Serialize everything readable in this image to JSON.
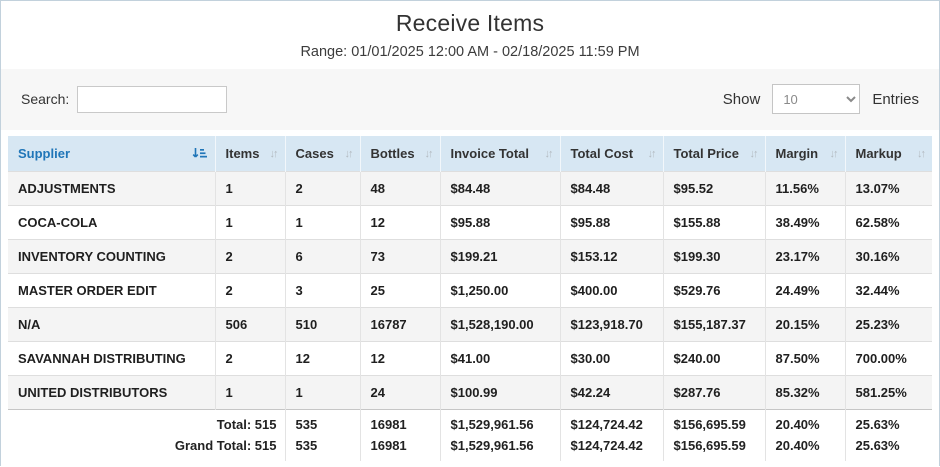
{
  "page": {
    "title": "Receive Items",
    "subtitle": "Range: 01/01/2025 12:00 AM - 02/18/2025 11:59 PM"
  },
  "toolbar": {
    "search_label": "Search:",
    "search_value": "",
    "show_label": "Show",
    "page_size": "10",
    "entries_label": "Entries"
  },
  "colors": {
    "header_bg": "#d7e7f3",
    "sorted_column_text": "#2076b8",
    "row_stripe": "#f4f4f4",
    "outer_border": "#c2d1dc"
  },
  "table": {
    "columns": [
      {
        "label": "Supplier",
        "sorted": true
      },
      {
        "label": "Items",
        "sorted": false
      },
      {
        "label": "Cases",
        "sorted": false
      },
      {
        "label": "Bottles",
        "sorted": false
      },
      {
        "label": "Invoice Total",
        "sorted": false
      },
      {
        "label": "Total Cost",
        "sorted": false
      },
      {
        "label": "Total Price",
        "sorted": false
      },
      {
        "label": "Margin",
        "sorted": false
      },
      {
        "label": "Markup",
        "sorted": false
      }
    ],
    "rows": [
      [
        "ADJUSTMENTS",
        "1",
        "2",
        "48",
        "$84.48",
        "$84.48",
        "$95.52",
        "11.56%",
        "13.07%"
      ],
      [
        "COCA-COLA",
        "1",
        "1",
        "12",
        "$95.88",
        "$95.88",
        "$155.88",
        "38.49%",
        "62.58%"
      ],
      [
        "INVENTORY COUNTING",
        "2",
        "6",
        "73",
        "$199.21",
        "$153.12",
        "$199.30",
        "23.17%",
        "30.16%"
      ],
      [
        "MASTER ORDER EDIT",
        "2",
        "3",
        "25",
        "$1,250.00",
        "$400.00",
        "$529.76",
        "24.49%",
        "32.44%"
      ],
      [
        "N/A",
        "506",
        "510",
        "16787",
        "$1,528,190.00",
        "$123,918.70",
        "$155,187.37",
        "20.15%",
        "25.23%"
      ],
      [
        "SAVANNAH DISTRIBUTING",
        "2",
        "12",
        "12",
        "$41.00",
        "$30.00",
        "$240.00",
        "87.50%",
        "700.00%"
      ],
      [
        "UNITED DISTRIBUTORS",
        "1",
        "1",
        "24",
        "$100.99",
        "$42.24",
        "$287.76",
        "85.32%",
        "581.25%"
      ]
    ],
    "footer_rows": [
      {
        "label": "Total: 515",
        "values": [
          "535",
          "16981",
          "$1,529,961.56",
          "$124,724.42",
          "$156,695.59",
          "20.40%",
          "25.63%"
        ]
      },
      {
        "label": "Grand Total: 515",
        "values": [
          "535",
          "16981",
          "$1,529,961.56",
          "$124,724.42",
          "$156,695.59",
          "20.40%",
          "25.63%"
        ]
      }
    ]
  }
}
